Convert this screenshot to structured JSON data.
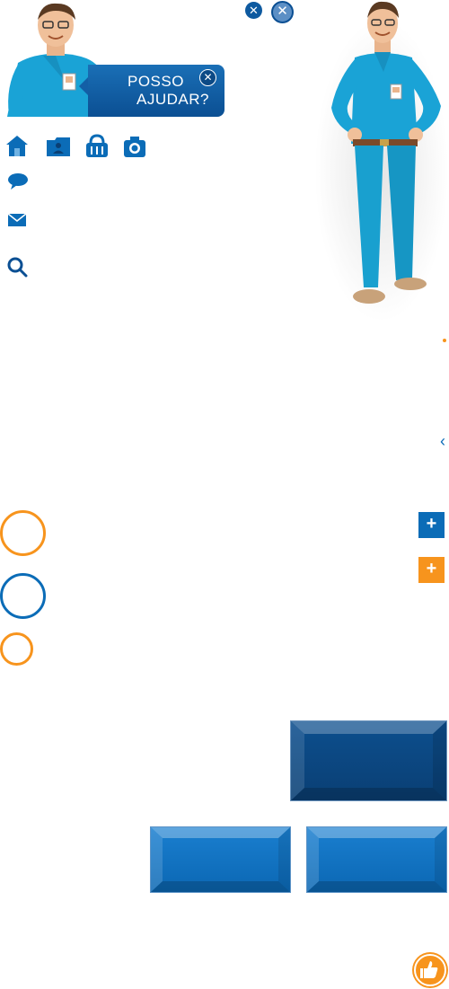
{
  "assistant": {
    "banner_line1": "POSSO",
    "banner_line2": "AJUDAR?",
    "close_glyph": "✕"
  },
  "icons": {
    "toolbar": [
      "home-icon",
      "profile-folder-icon",
      "basket-icon",
      "camera-icon"
    ],
    "sidebar": [
      "chat-bubble-icon",
      "envelope-icon",
      "search-icon"
    ],
    "floating": [
      "plus-icon",
      "plus-icon",
      "chevron-left-icon",
      "thumbs-up-icon"
    ]
  },
  "controls": {
    "plus_glyph": "+",
    "chevron_glyph": "‹"
  },
  "colors": {
    "brand_blue": "#0b6cb7",
    "dark_blue": "#0b4f93",
    "accent_orange": "#f7941d",
    "shirt_cyan": "#1aa3d6"
  }
}
